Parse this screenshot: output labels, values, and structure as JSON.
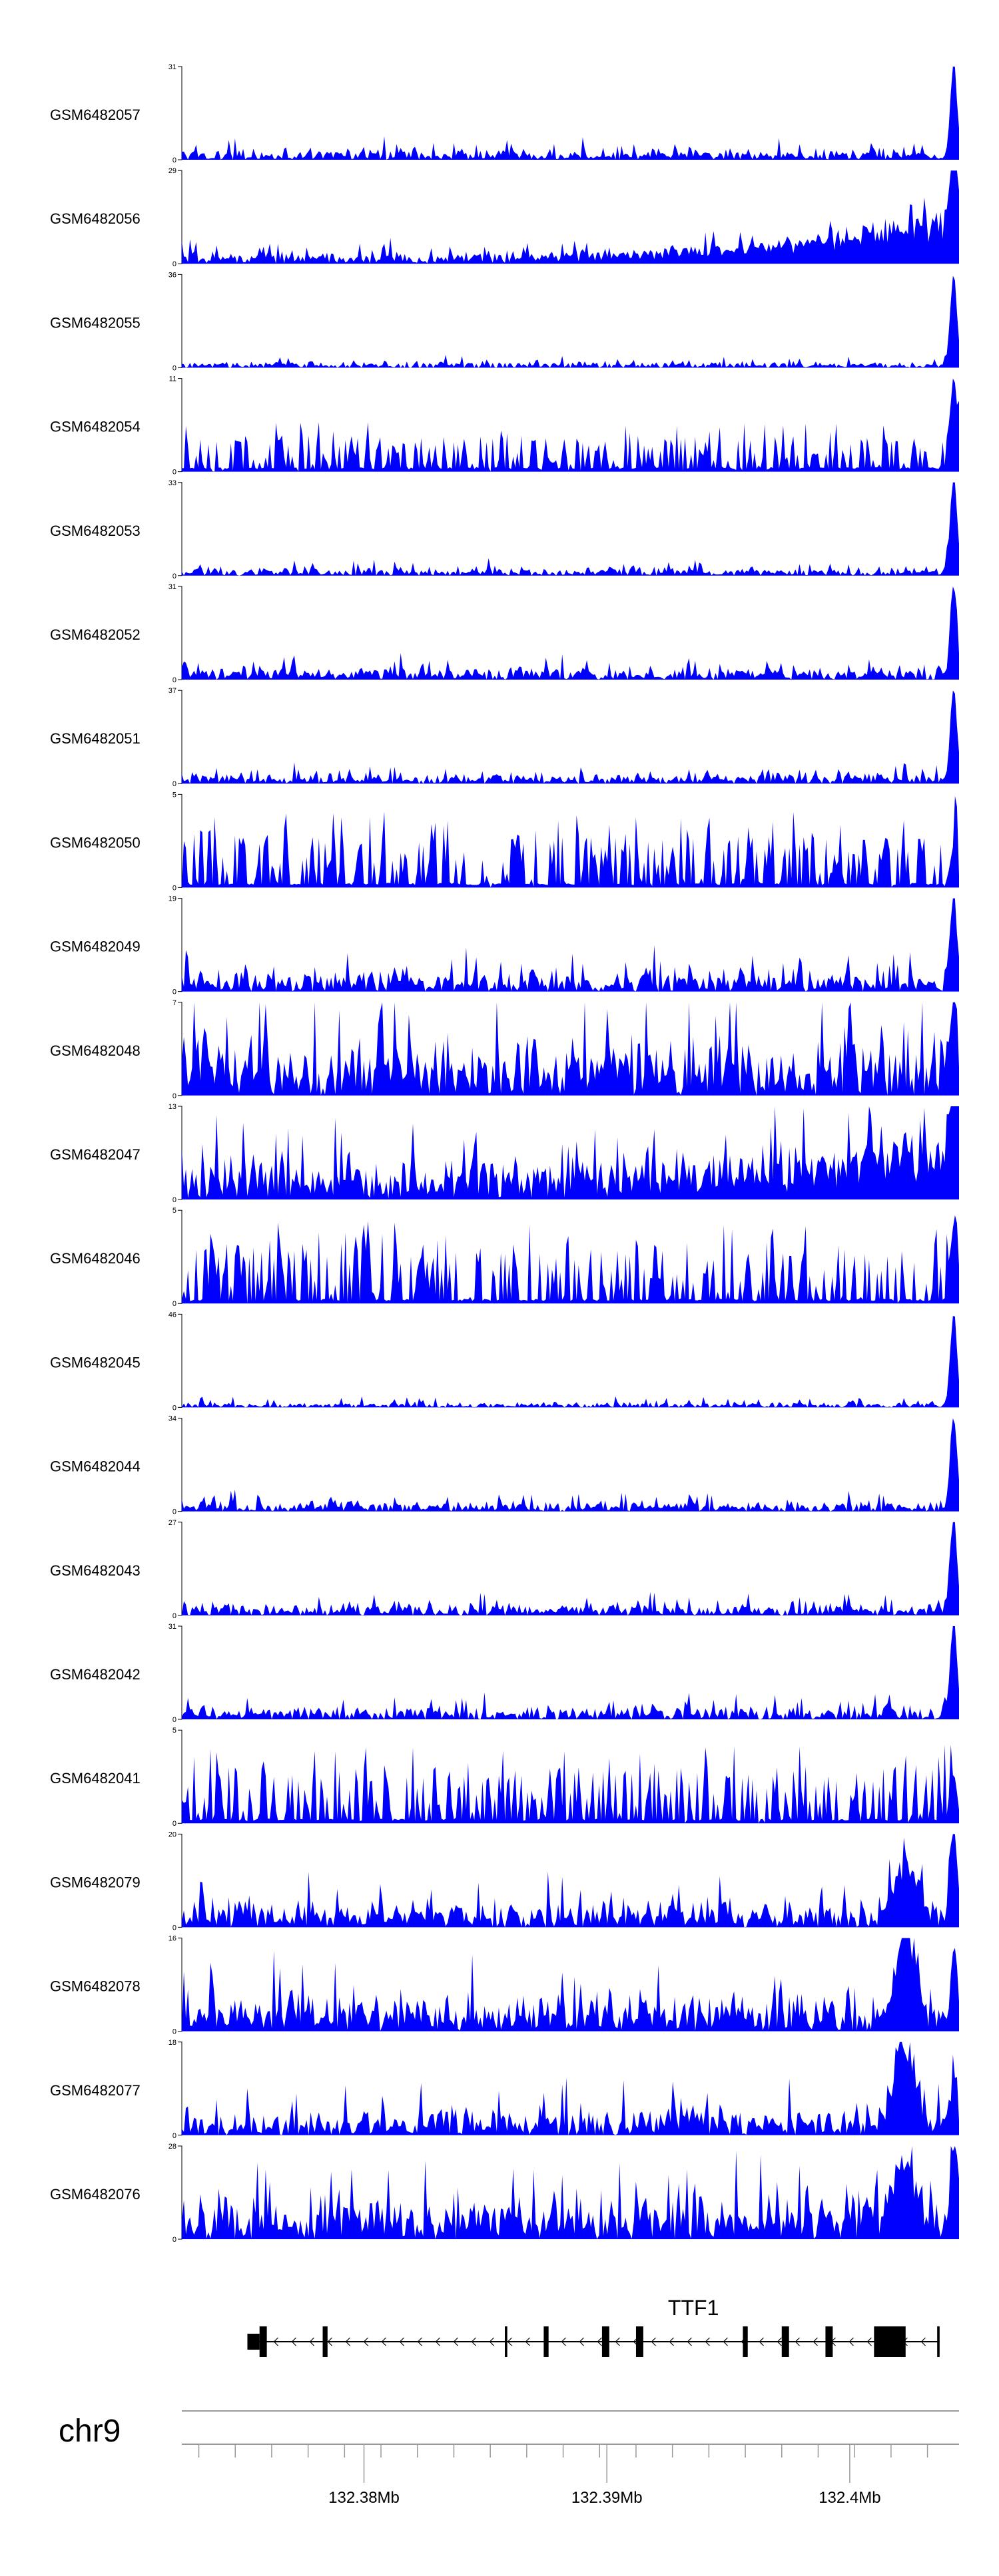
{
  "chart_data": {
    "type": "area",
    "fill_color": "#0000ff",
    "axis_color": "#000000",
    "x_range": [
      132.3725,
      132.4045
    ],
    "tracks": [
      {
        "name": "GSM6482057",
        "ymax": 31,
        "ymin": 0,
        "noise": 0.1,
        "end_peak": 1.0
      },
      {
        "name": "GSM6482056",
        "ymax": 29,
        "ymin": 0,
        "noise": 0.12,
        "end_peak": 1.0,
        "rise": 0.6
      },
      {
        "name": "GSM6482055",
        "ymax": 36,
        "ymin": 0,
        "noise": 0.06,
        "end_peak": 1.0
      },
      {
        "name": "GSM6482054",
        "ymax": 11,
        "ymin": 0,
        "noise": 0.45,
        "end_peak": 1.0,
        "sparse": 1
      },
      {
        "name": "GSM6482053",
        "ymax": 33,
        "ymin": 0,
        "noise": 0.08,
        "end_peak": 1.0
      },
      {
        "name": "GSM6482052",
        "ymax": 31,
        "ymin": 0,
        "noise": 0.12,
        "end_peak": 1.0
      },
      {
        "name": "GSM6482051",
        "ymax": 37,
        "ymin": 0,
        "noise": 0.1,
        "end_peak": 1.0
      },
      {
        "name": "GSM6482050",
        "ymax": 5,
        "ymin": 0,
        "noise": 0.7,
        "end_peak": 0.4,
        "sparse": 1
      },
      {
        "name": "GSM6482049",
        "ymax": 19,
        "ymin": 0,
        "noise": 0.2,
        "end_peak": 1.0
      },
      {
        "name": "GSM6482048",
        "ymax": 7,
        "ymin": 0,
        "noise": 0.55,
        "end_peak": 0.95
      },
      {
        "name": "GSM6482047",
        "ymax": 13,
        "ymin": 0,
        "noise": 0.4,
        "end_peak": 1.0,
        "rise": 0.5
      },
      {
        "name": "GSM6482046",
        "ymax": 5,
        "ymin": 0,
        "noise": 0.75,
        "end_peak": 0.5,
        "sparse": 1
      },
      {
        "name": "GSM6482045",
        "ymax": 46,
        "ymin": 0,
        "noise": 0.05,
        "end_peak": 1.0
      },
      {
        "name": "GSM6482044",
        "ymax": 34,
        "ymin": 0,
        "noise": 0.1,
        "end_peak": 1.0
      },
      {
        "name": "GSM6482043",
        "ymax": 27,
        "ymin": 0,
        "noise": 0.12,
        "end_peak": 1.0
      },
      {
        "name": "GSM6482042",
        "ymax": 31,
        "ymin": 0,
        "noise": 0.12,
        "end_peak": 1.0
      },
      {
        "name": "GSM6482041",
        "ymax": 5,
        "ymin": 0,
        "noise": 0.7,
        "end_peak": 0.5,
        "sparse": 1
      },
      {
        "name": "GSM6482079",
        "ymax": 20,
        "ymin": 0,
        "noise": 0.25,
        "end_peak": 1.0,
        "bump": 0.7
      },
      {
        "name": "GSM6482078",
        "ymax": 16,
        "ymin": 0,
        "noise": 0.35,
        "end_peak": 0.7,
        "bump": 1.0
      },
      {
        "name": "GSM6482077",
        "ymax": 18,
        "ymin": 0,
        "noise": 0.28,
        "end_peak": 0.5,
        "bump": 1.0
      },
      {
        "name": "GSM6482076",
        "ymax": 28,
        "ymin": 0,
        "noise": 0.4,
        "end_peak": 0.95,
        "bump": 0.9
      }
    ],
    "gene": {
      "name": "TTF1",
      "strand": "-",
      "start": 132.3752,
      "end": 132.4037,
      "exons": [
        {
          "start": 132.3752,
          "end": 132.3757
        },
        {
          "start": 132.3757,
          "end": 132.376
        },
        {
          "start": 132.3783,
          "end": 132.3785
        },
        {
          "start": 132.3858,
          "end": 132.3859
        },
        {
          "start": 132.3874,
          "end": 132.3876
        },
        {
          "start": 132.3898,
          "end": 132.3901
        },
        {
          "start": 132.3912,
          "end": 132.3915
        },
        {
          "start": 132.3956,
          "end": 132.3958
        },
        {
          "start": 132.3972,
          "end": 132.3975
        },
        {
          "start": 132.399,
          "end": 132.3993
        },
        {
          "start": 132.401,
          "end": 132.4023
        },
        {
          "start": 132.4036,
          "end": 132.4037
        }
      ]
    },
    "chromosome": "chr9",
    "axis_ticks": [
      {
        "value": 132.38,
        "label": "132.38Mb"
      },
      {
        "value": 132.39,
        "label": "132.39Mb"
      },
      {
        "value": 132.4,
        "label": "132.4Mb"
      }
    ],
    "minor_tick_step": 0.0015
  }
}
